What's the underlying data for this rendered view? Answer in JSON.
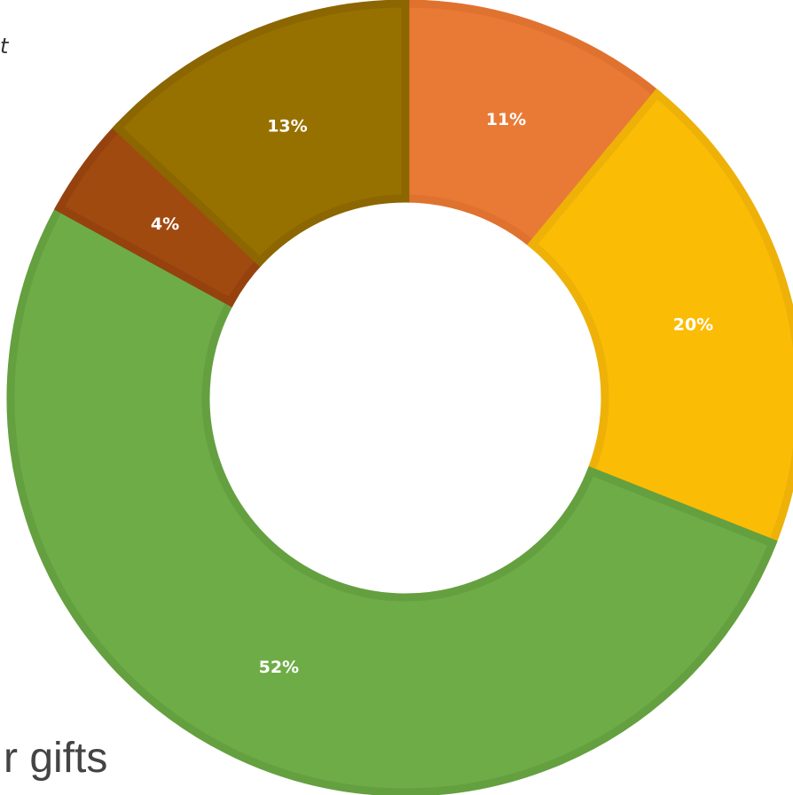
{
  "corner_text": "t",
  "bottom_text": "r gifts",
  "chart_data": {
    "type": "pie",
    "variant": "donut",
    "title": "",
    "values": [
      11,
      20,
      52,
      4,
      13
    ],
    "labels": [
      "11%",
      "20%",
      "52%",
      "4%",
      "13%"
    ],
    "colors": [
      "#E97A35",
      "#FBBC05",
      "#6EAC47",
      "#A14A10",
      "#977100"
    ],
    "border_colors": [
      "#E0722F",
      "#EDB108",
      "#64A03F",
      "#96420F",
      "#8C6600"
    ]
  }
}
